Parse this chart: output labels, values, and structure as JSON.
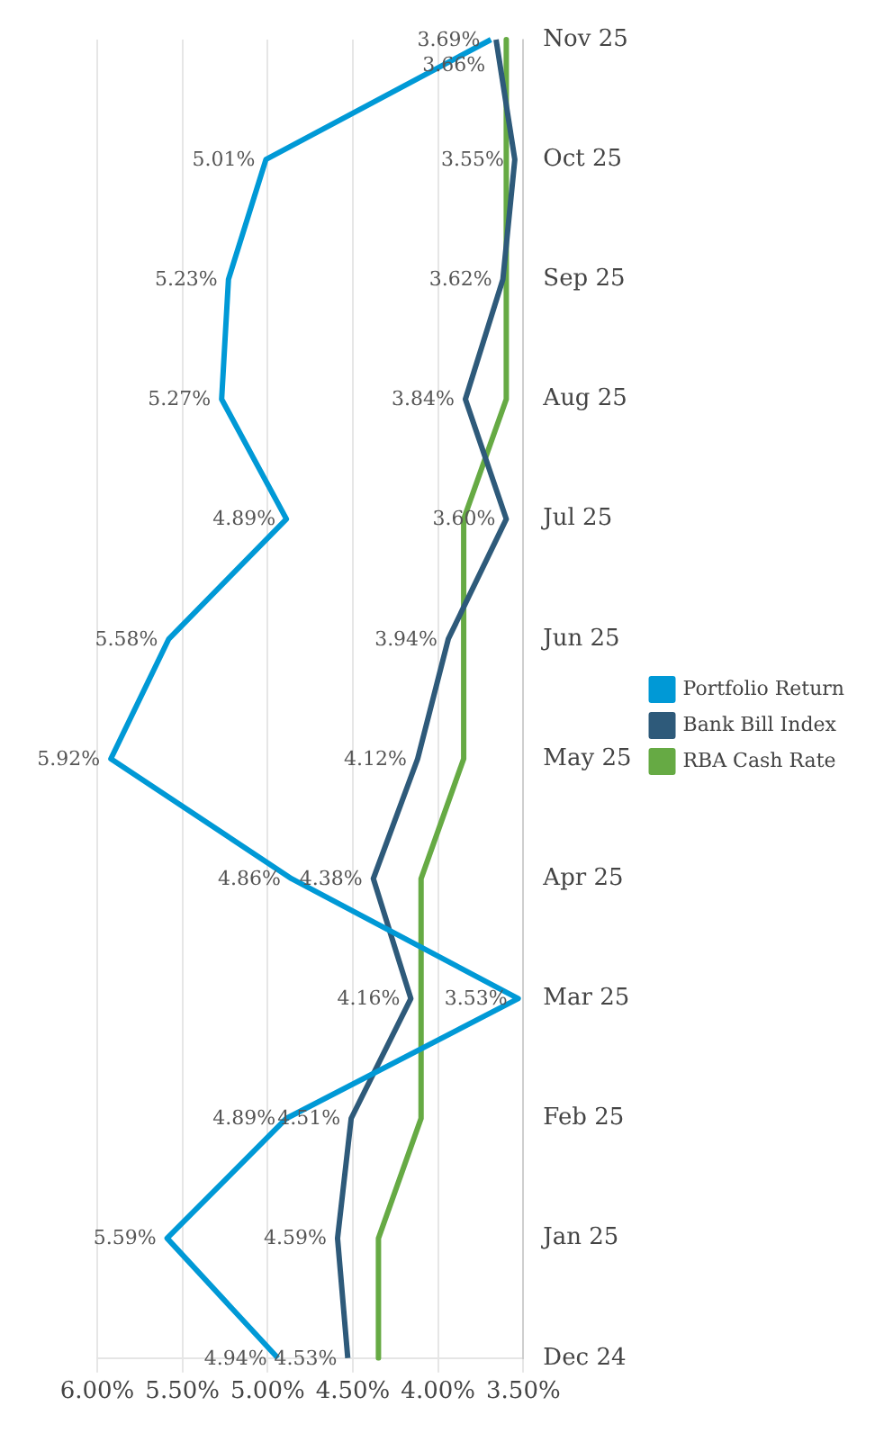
{
  "chart_data": {
    "type": "line",
    "orientation": "horizontal",
    "categories": [
      "Nov 25",
      "Oct 25",
      "Sep 25",
      "Aug 25",
      "Jul 25",
      "Jun 25",
      "May 25",
      "Apr 25",
      "Mar 25",
      "Feb 25",
      "Jan 25",
      "Dec 24"
    ],
    "series": [
      {
        "name": "Portfolio Return",
        "color": "#0099d6",
        "values": [
          3.69,
          5.01,
          5.23,
          5.27,
          4.89,
          5.58,
          5.92,
          4.86,
          3.53,
          4.89,
          5.59,
          4.94
        ],
        "value_labels": [
          "3.69%",
          "5.01%",
          "5.23%",
          "5.27%",
          "4.89%",
          "5.58%",
          "5.92%",
          "4.86%",
          "3.53%",
          "4.89%",
          "5.59%",
          "4.94%"
        ]
      },
      {
        "name": "Bank Bill Index",
        "color": "#2e5a7a",
        "values": [
          3.66,
          3.55,
          3.62,
          3.84,
          3.6,
          3.94,
          4.12,
          4.38,
          4.16,
          4.51,
          4.59,
          4.53
        ],
        "value_labels": [
          "3.66%",
          "3.55%",
          "3.62%",
          "3.84%",
          "3.60%",
          "3.94%",
          "4.12%",
          "4.38%",
          "4.16%",
          "4.51%",
          "4.59%",
          "4.53%"
        ]
      },
      {
        "name": "RBA Cash Rate",
        "color": "#66aa44",
        "values": [
          3.6,
          3.6,
          3.6,
          3.6,
          3.85,
          3.85,
          3.85,
          4.1,
          4.1,
          4.1,
          4.35,
          4.35
        ]
      }
    ],
    "xlim": [
      6.0,
      3.5
    ],
    "xticks": [
      {
        "value": 6.0,
        "label": "6.00%"
      },
      {
        "value": 5.5,
        "label": "5.50%"
      },
      {
        "value": 5.0,
        "label": "5.00%"
      },
      {
        "value": 4.5,
        "label": "4.50%"
      },
      {
        "value": 4.0,
        "label": "4.00%"
      },
      {
        "value": 3.5,
        "label": "3.50%"
      }
    ],
    "grid": "x",
    "legend": "right",
    "marker": "none",
    "line_style": "solid"
  }
}
